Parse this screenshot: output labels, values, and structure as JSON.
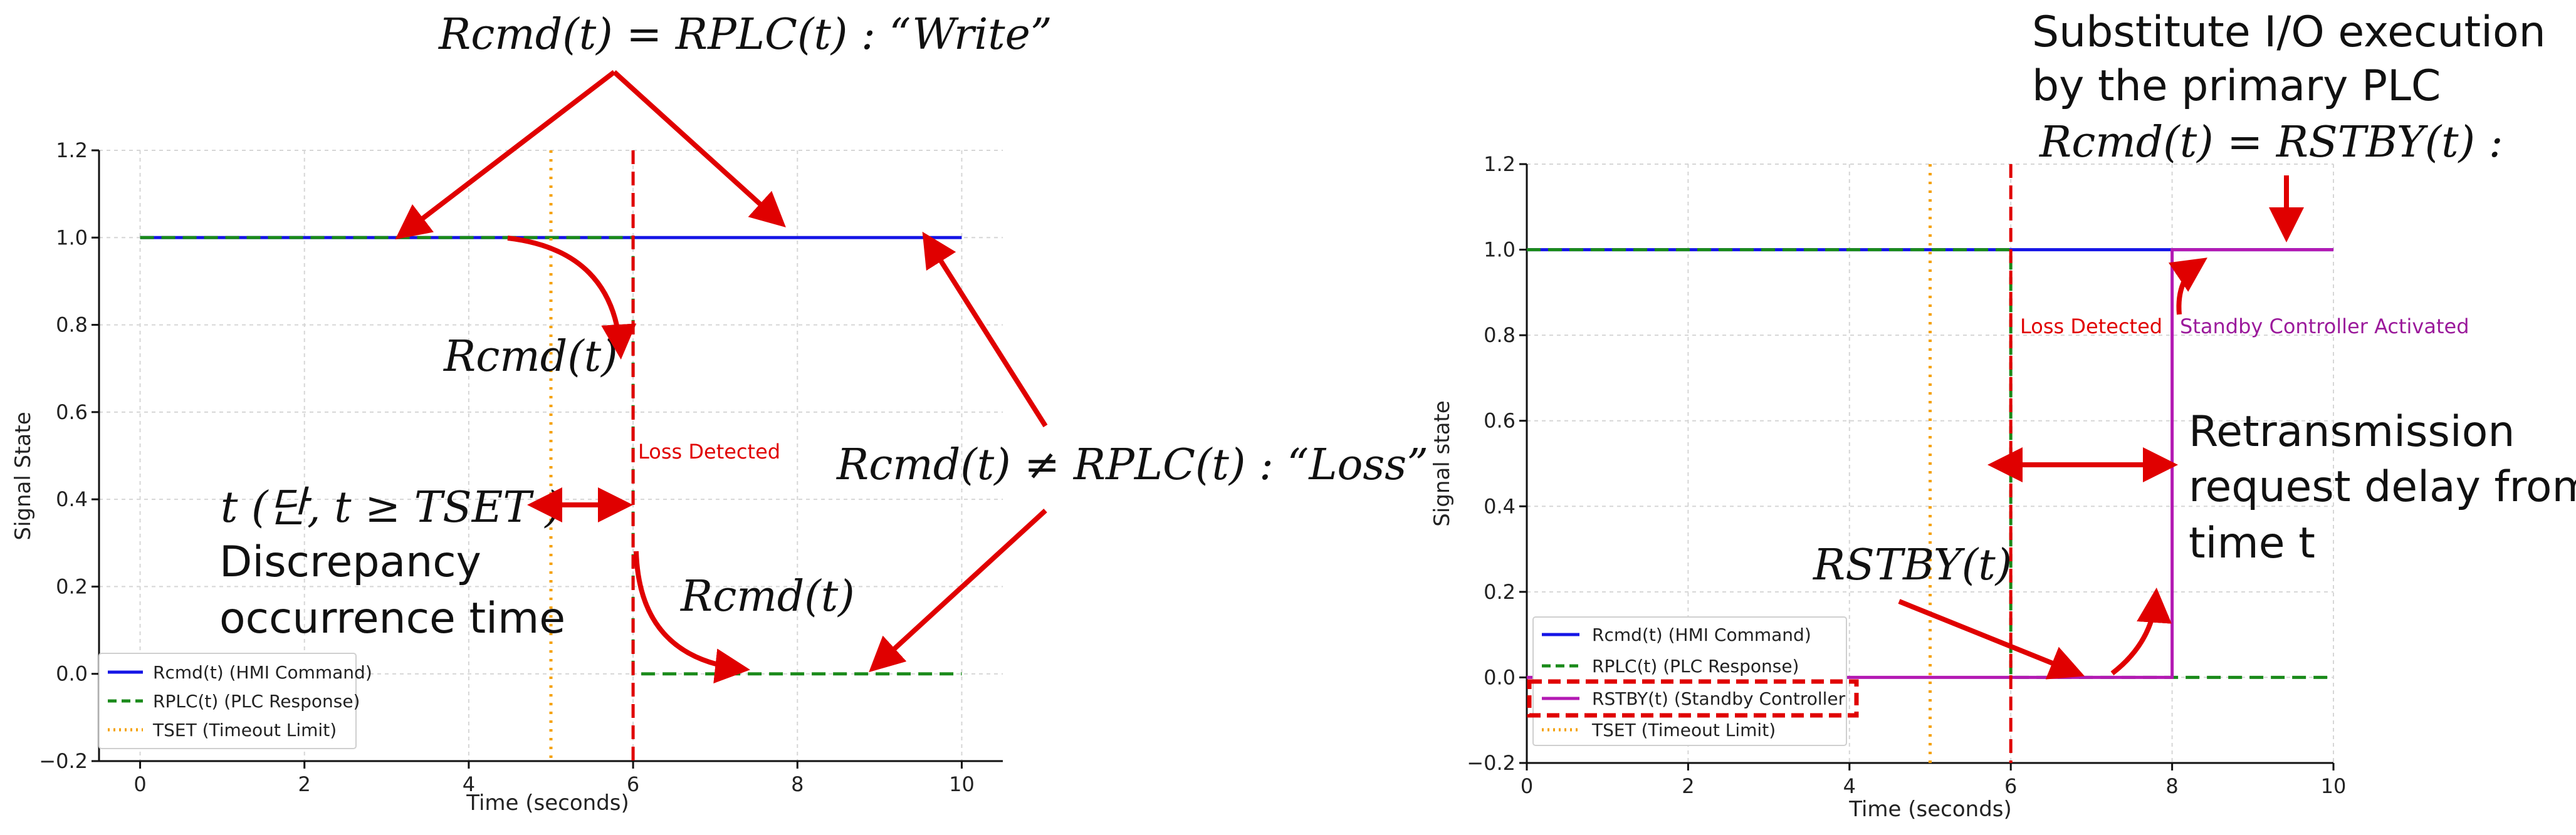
{
  "chart_data": [
    {
      "type": "line",
      "xlabel": "Time (seconds)",
      "ylabel": "Signal State",
      "xlim": [
        -0.5,
        10.5
      ],
      "ylim": [
        -0.2,
        1.2
      ],
      "xticks": [
        "0",
        "2",
        "4",
        "6",
        "8",
        "10"
      ],
      "yticks": [
        "−0.2",
        "0.0",
        "0.2",
        "0.4",
        "0.6",
        "0.8",
        "1.0",
        "1.2"
      ],
      "grid": true,
      "legend_position": "bottom-left",
      "series": [
        {
          "name": "Rcmd(t) (HMI Command)",
          "color": "#1515e6",
          "style": "solid",
          "x": [
            0,
            10
          ],
          "y": [
            1,
            1
          ]
        },
        {
          "name": "RPLC(t) (PLC Response)",
          "color": "#1a8a1a",
          "style": "dashed",
          "x": [
            0,
            6,
            6,
            10
          ],
          "y": [
            1,
            1,
            0,
            0
          ]
        },
        {
          "name": "TSET (Timeout Limit)",
          "color": "#f5a20a",
          "style": "dotted",
          "vertical_x": 5
        }
      ],
      "vlines": [
        {
          "x": 6,
          "color": "#e00000",
          "label": "Loss Detected"
        }
      ],
      "annotations": {
        "write": "Rcmd(t) = RPLC(t) : “Write”",
        "rcmd_upper": "Rcmd(t)",
        "rcmd_lower": "Rcmd(t)",
        "loss": "Rcmd(t) ≠ RPLC(t) : “Loss”",
        "t_condition": "t (단, t ≥ TSET )",
        "discrepancy_line1": "Discrepancy",
        "discrepancy_line2": "occurrence time"
      }
    },
    {
      "type": "line",
      "xlabel": "Time (seconds)",
      "ylabel": "Signal state",
      "xlim": [
        0,
        10
      ],
      "ylim": [
        -0.2,
        1.2
      ],
      "xticks": [
        "0",
        "2",
        "4",
        "6",
        "8",
        "10"
      ],
      "yticks": [
        "−0.2",
        "0.0",
        "0.2",
        "0.4",
        "0.6",
        "0.8",
        "1.0",
        "1.2"
      ],
      "grid": true,
      "legend_position": "bottom-left",
      "series": [
        {
          "name": "Rcmd(t) (HMI Command)",
          "color": "#1515e6",
          "style": "solid",
          "x": [
            0,
            10
          ],
          "y": [
            1,
            1
          ]
        },
        {
          "name": "RPLC(t) (PLC Response)",
          "color": "#1a8a1a",
          "style": "dashed",
          "x": [
            0,
            6,
            6,
            10
          ],
          "y": [
            1,
            1,
            0,
            0
          ]
        },
        {
          "name": "RSTBY(t) (Standby Controller",
          "color": "#b31ab3",
          "style": "solid",
          "x": [
            0,
            8,
            8,
            10
          ],
          "y": [
            0,
            0,
            1,
            1
          ]
        },
        {
          "name": "TSET (Timeout Limit)",
          "color": "#f5a20a",
          "style": "dotted",
          "vertical_x": 5
        }
      ],
      "vlines": [
        {
          "x": 6,
          "color": "#e00000",
          "label": "Loss Detected"
        }
      ],
      "labels": {
        "standby": "Standby Controller Activated"
      },
      "annotations": {
        "substitute_line1": "Substitute I/O execution",
        "substitute_line2": "by the primary PLC",
        "equation": "Rcmd(t) = RSTBY(t) :",
        "retrans_line1": "Retransmission",
        "retrans_line2": "request delay from",
        "retrans_line3": "time t",
        "rstby": "RSTBY(t)"
      }
    }
  ]
}
